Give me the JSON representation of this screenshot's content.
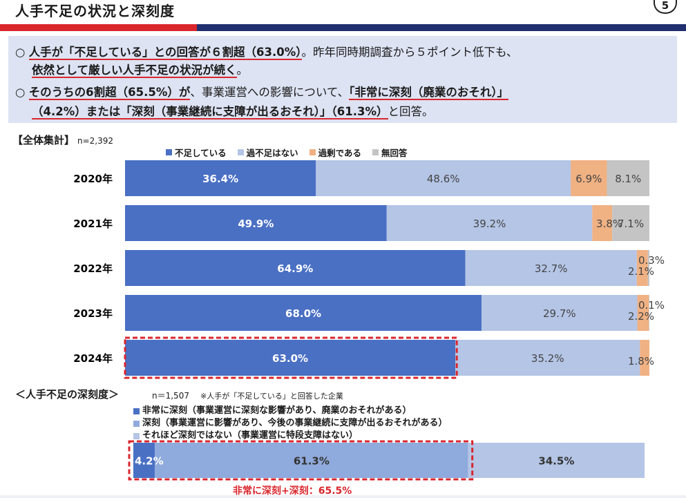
{
  "header": {
    "title": "人手不足の状況と深刻度",
    "page_number": "5"
  },
  "summary": {
    "line1_a": "○",
    "line1_b": "人手が「不足している」との回答が６割超（63.0%）",
    "line1_c": "。昨年同時期調査から５ポイント低下も、",
    "line2": "依然として厳しい人手不足の状況が続く",
    "line2_end": "。",
    "line3_a": "○",
    "line3_b": "そのうちの6割超（65.5%）が",
    "line3_c": "、事業運営への影響について、",
    "line3_d": "「非常に深刻（廃業のおそれ）」",
    "line4_a": "（4.2%）または「深刻（事業継続に支障が出るおそれ）」（61.3%）",
    "line4_b": "と回答。"
  },
  "overall": {
    "label": "【全体集計】",
    "n": "n=2,392"
  },
  "chart_data": [
    {
      "type": "bar",
      "orientation": "horizontal",
      "stacked": true,
      "title": "【全体集計】",
      "categories": [
        "2020年",
        "2021年",
        "2022年",
        "2023年",
        "2024年"
      ],
      "series": [
        {
          "name": "不足している",
          "color": "#4a70c4",
          "values": [
            36.4,
            49.9,
            64.9,
            68.0,
            63.0
          ]
        },
        {
          "name": "過不足はない",
          "color": "#b4c5e6",
          "values": [
            48.6,
            39.2,
            32.7,
            29.7,
            35.2
          ]
        },
        {
          "name": "過剰である",
          "color": "#f0b183",
          "values": [
            6.9,
            3.8,
            2.1,
            2.2,
            1.8
          ]
        },
        {
          "name": "無回答",
          "color": "#c4c4c4",
          "values": [
            8.1,
            7.1,
            0.3,
            0.1,
            0.0
          ]
        }
      ],
      "labels": [
        [
          "36.4%",
          "48.6%",
          "6.9%",
          "8.1%"
        ],
        [
          "49.9%",
          "39.2%",
          "3.8%",
          "7.1%"
        ],
        [
          "64.9%",
          "32.7%",
          "2.1%",
          "0.3%"
        ],
        [
          "68.0%",
          "29.7%",
          "2.2%",
          "0.1%"
        ],
        [
          "63.0%",
          "35.2%",
          "1.8%",
          ""
        ]
      ],
      "highlight_category": "2024年",
      "legend_position": "top"
    },
    {
      "type": "bar",
      "orientation": "horizontal",
      "stacked": true,
      "title": "＜人手不足の深刻度＞",
      "categories": [
        ""
      ],
      "series": [
        {
          "name": "非常に深刻（事業運営に深刻な影響があり、廃業のおそれがある）",
          "color": "#4a70c4",
          "values": [
            4.2
          ]
        },
        {
          "name": "深刻（事業運営に影響があり、今後の事業継続に支障が出るおそれがある）",
          "color": "#8faadc",
          "values": [
            61.3
          ]
        },
        {
          "name": "それほど深刻ではない（事業運営に特段支障はない）",
          "color": "#b4c5e6",
          "values": [
            34.5
          ]
        }
      ],
      "labels": [
        [
          "4.2%",
          "61.3%",
          "34.5%"
        ]
      ],
      "legend_position": "top"
    }
  ],
  "severity": {
    "label": "＜人手不足の深刻度＞",
    "n": "n＝1,507",
    "note": "※人手が「不足している」と回答した企業",
    "sum_note": "非常に深刻+深刻：65.5%"
  }
}
